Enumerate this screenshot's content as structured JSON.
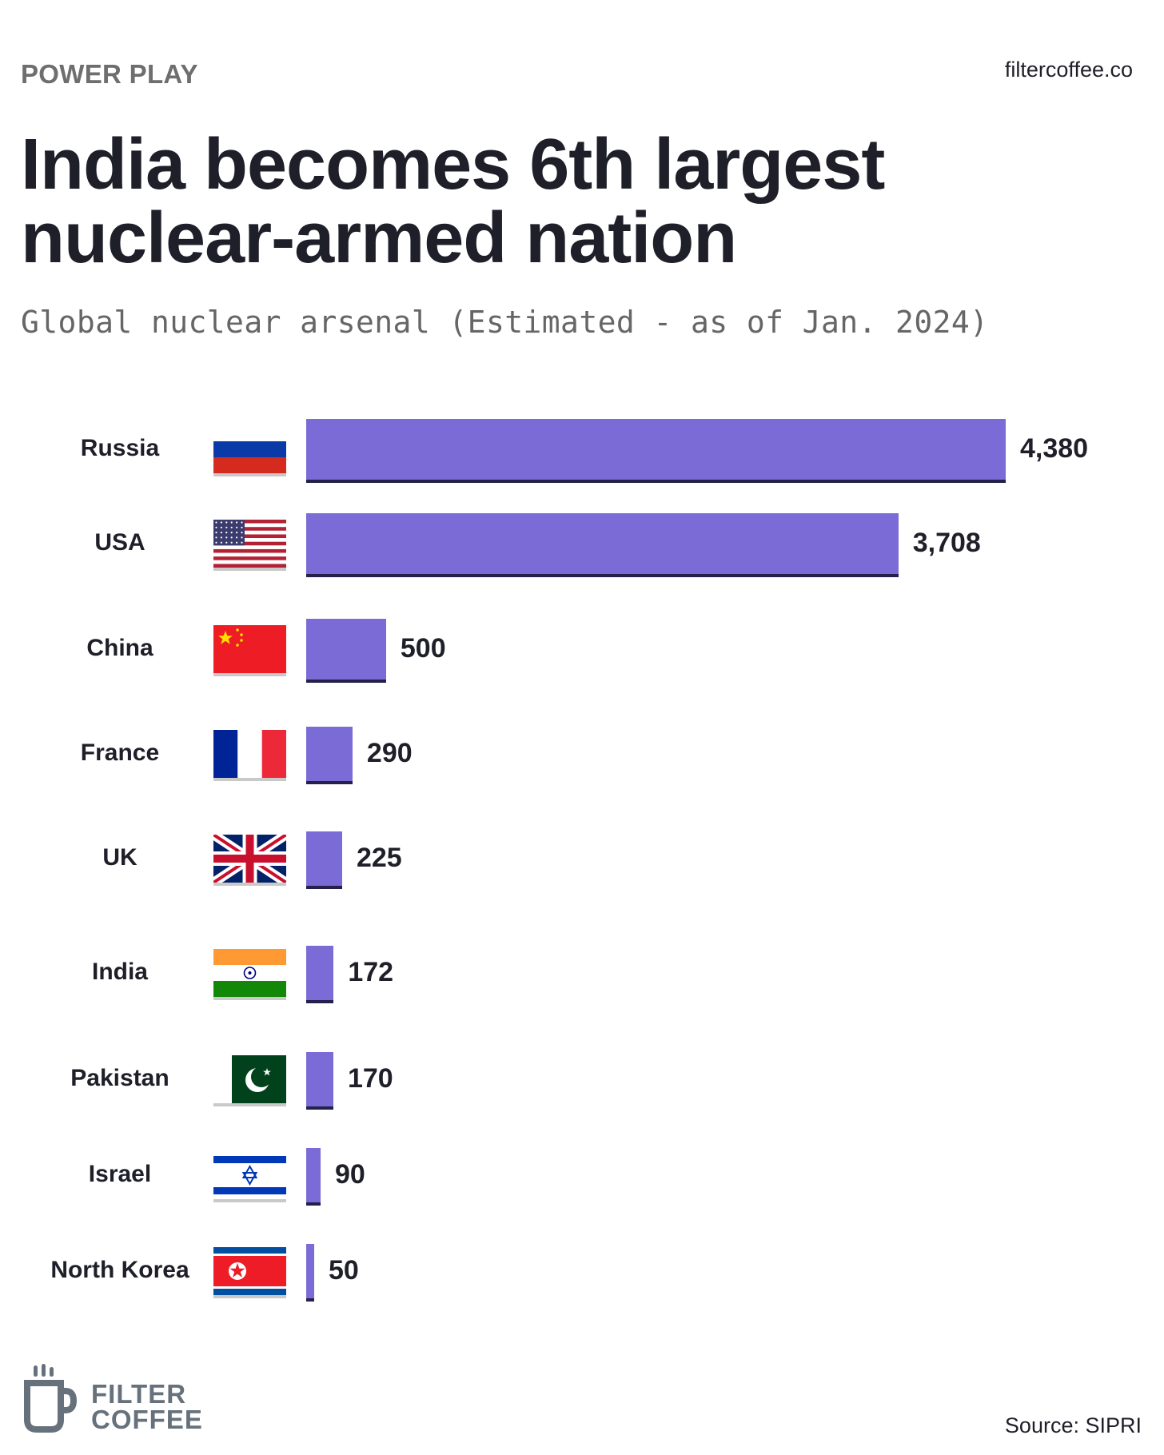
{
  "header": {
    "kicker": "POWER PLAY",
    "site": "filtercoffee.co"
  },
  "footer": {
    "brand_line1": "FILTER",
    "brand_line2": "COFFEE",
    "source": "Source: SIPRI"
  },
  "colors": {
    "bar": "#7b6bd6",
    "bar_shadow": "#23204a",
    "text": "#1f1f2a",
    "muted": "#6e6e6e"
  },
  "chart_data": {
    "type": "bar",
    "orientation": "horizontal",
    "title": "India becomes 6th largest nuclear-armed nation",
    "subtitle": "Global nuclear arsenal (Estimated - as of Jan. 2024)",
    "categories": [
      "Russia",
      "USA",
      "China",
      "France",
      "UK",
      "India",
      "Pakistan",
      "Israel",
      "North Korea"
    ],
    "values": [
      4380,
      3708,
      500,
      290,
      225,
      172,
      170,
      90,
      50
    ],
    "value_labels": [
      "4,380",
      "3,708",
      "500",
      "290",
      "225",
      "172",
      "170",
      "90",
      "50"
    ],
    "flags": [
      "russia-flag-icon",
      "usa-flag-icon",
      "china-flag-icon",
      "france-flag-icon",
      "uk-flag-icon",
      "india-flag-icon",
      "pakistan-flag-icon",
      "israel-flag-icon",
      "north-korea-flag-icon"
    ],
    "xlim": [
      0,
      4380
    ],
    "grid": false,
    "legend": "none"
  }
}
